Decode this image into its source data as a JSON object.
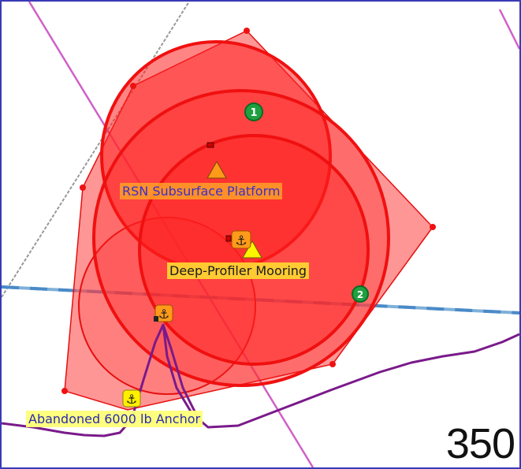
{
  "map": {
    "labels": {
      "rsn_platform": "RSN Subsurface Platform",
      "deep_profiler": "Deep-Profiler Mooring",
      "abandoned_anchor": "Abandoned 6000 lb Anchor"
    },
    "depth_value": "350",
    "markers": {
      "green_marker_1": "1",
      "green_marker_2": "2"
    },
    "colors": {
      "exclusion_zone_fill": "#ff2a2a",
      "exclusion_zone_stroke": "#e61010",
      "cable_route": "#7a1a8a",
      "transit_line": "#d060c8",
      "shipping_lane": "#4a9ad8",
      "frame_border": "#3a3ab8"
    },
    "icons": [
      "anchor-icon",
      "triangle-warning-icon",
      "green-numbered-marker-icon"
    ]
  }
}
